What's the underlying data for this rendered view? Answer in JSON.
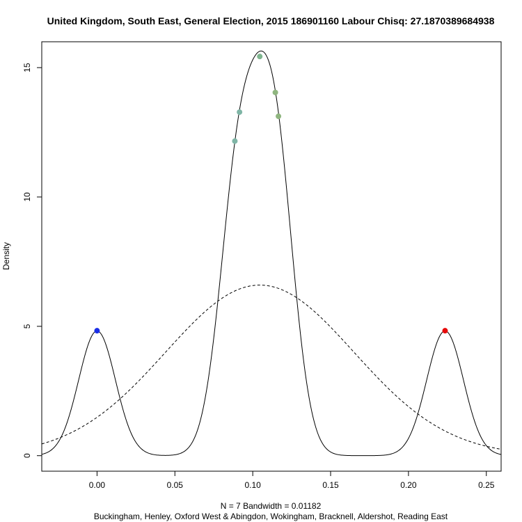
{
  "chart_data": {
    "type": "line",
    "title": "United Kingdom, South East, General Election, 2015 186901160 Labour Chisq: 27.1870389684938",
    "xlabel_line1": "N = 7   Bandwidth = 0.01182",
    "xlabel_line2": "Buckingham, Henley, Oxford West & Abingdon, Wokingham, Bracknell, Aldershot, Reading East",
    "ylabel": "Density",
    "xlim": [
      -0.0355,
      0.2595
    ],
    "ylim": [
      -0.6,
      16.0
    ],
    "x_ticks": [
      0.0,
      0.05,
      0.1,
      0.15,
      0.2,
      0.25
    ],
    "x_tick_labels": [
      "0.00",
      "0.05",
      "0.10",
      "0.15",
      "0.20",
      "0.25"
    ],
    "y_ticks": [
      0,
      5,
      10,
      15
    ],
    "y_tick_labels": [
      "0",
      "5",
      "10",
      "15"
    ],
    "bandwidth": 0.01182,
    "n": 7,
    "kde_points": [
      0.0,
      0.0885,
      0.0915,
      0.1045,
      0.1145,
      0.1165,
      0.2235
    ],
    "kde_range": [
      -0.0355,
      0.2595
    ],
    "normal_curve": {
      "mean": 0.1045,
      "sd": 0.0605
    },
    "points": [
      {
        "x": 0.0,
        "y": 4.83,
        "color": "#1a2ee6"
      },
      {
        "x": 0.0885,
        "y": 12.16,
        "color": "#7fb5a6"
      },
      {
        "x": 0.0915,
        "y": 13.28,
        "color": "#7fb5a6"
      },
      {
        "x": 0.1045,
        "y": 15.43,
        "color": "#7fb58f"
      },
      {
        "x": 0.1145,
        "y": 14.04,
        "color": "#8fb57f"
      },
      {
        "x": 0.1165,
        "y": 13.12,
        "color": "#8fb57f"
      },
      {
        "x": 0.2235,
        "y": 4.83,
        "color": "#e60a0a"
      }
    ],
    "solid_curve_color": "#000000",
    "dashed_curve_color": "#000000"
  }
}
